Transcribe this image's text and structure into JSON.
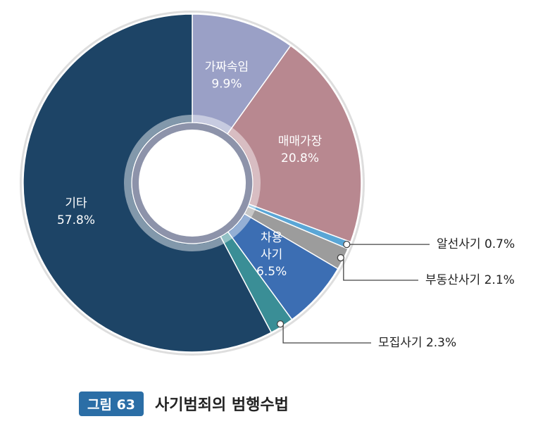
{
  "chart_data": {
    "type": "pie",
    "donut": true,
    "categories": [
      "가짜속임",
      "매매가장",
      "알선사기",
      "부동산사기",
      "차용사기",
      "모집사기",
      "기타"
    ],
    "values": [
      9.9,
      20.8,
      0.7,
      2.1,
      6.5,
      2.3,
      57.8
    ],
    "unit": "%",
    "slices": [
      {
        "name": "가짜속임",
        "value": 9.9,
        "label_lines": [
          "가짜속임",
          "9.9%"
        ],
        "label_mode": "inside",
        "color": "#9aa0c6",
        "text_color": "#ffffff"
      },
      {
        "name": "매매가장",
        "value": 20.8,
        "label_lines": [
          "매매가장",
          "20.8%"
        ],
        "label_mode": "inside",
        "color": "#b88890",
        "text_color": "#ffffff"
      },
      {
        "name": "알선사기",
        "value": 0.7,
        "label_lines": [
          "알선사기 0.7%"
        ],
        "label_mode": "callout",
        "color": "#5aa6d6",
        "text_color": "#222222"
      },
      {
        "name": "부동산사기",
        "value": 2.1,
        "label_lines": [
          "부동산사기 2.1%"
        ],
        "label_mode": "callout",
        "color": "#9c9c9c",
        "text_color": "#222222"
      },
      {
        "name": "차용사기",
        "value": 6.5,
        "label_lines": [
          "차용",
          "사기",
          "6.5%"
        ],
        "label_mode": "inside",
        "color": "#3c6eb3",
        "text_color": "#ffffff"
      },
      {
        "name": "모집사기",
        "value": 2.3,
        "label_lines": [
          "모집사기 2.3%"
        ],
        "label_mode": "callout",
        "color": "#3a8e96",
        "text_color": "#222222"
      },
      {
        "name": "기타",
        "value": 57.8,
        "label_lines": [
          "기타",
          "57.8%"
        ],
        "label_mode": "inside",
        "color": "#1d4466",
        "text_color": "#ffffff"
      }
    ]
  },
  "caption": {
    "figure_number": "그림 63",
    "title": "사기범죄의 범행수법"
  }
}
